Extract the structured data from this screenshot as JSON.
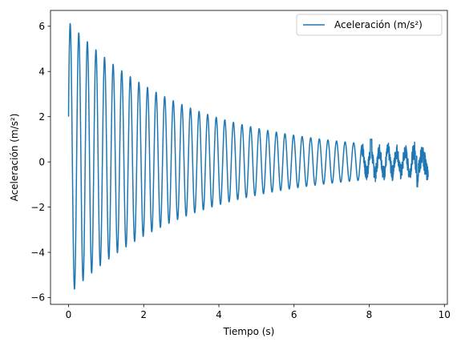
{
  "chart_data": {
    "type": "line",
    "xlabel": "Tiempo (s)",
    "ylabel": "Aceleración (m/s²)",
    "xlim": [
      -0.48,
      10.08
    ],
    "ylim": [
      -6.3,
      6.7
    ],
    "xticks": [
      0,
      2,
      4,
      6,
      8,
      10
    ],
    "yticks": [
      -6,
      -4,
      -2,
      0,
      2,
      4,
      6
    ],
    "xtick_labels": [
      "0",
      "2",
      "4",
      "6",
      "8",
      "10"
    ],
    "ytick_labels": [
      "−6",
      "−4",
      "−2",
      "0",
      "2",
      "4",
      "6"
    ],
    "grid": false,
    "legend": {
      "position": "top-right",
      "entries": [
        "Aceleración (m/s²)"
      ]
    },
    "series": [
      {
        "name": "Aceleración (m/s²)",
        "color": "#1f77b4",
        "description_points": [
          [
            0.0,
            2.0
          ],
          [
            0.05,
            5.4
          ],
          [
            0.08,
            6.2
          ],
          [
            0.15,
            1.5
          ],
          [
            0.2,
            -5.2
          ],
          [
            0.22,
            -5.9
          ],
          [
            0.3,
            0.5
          ],
          [
            0.4,
            6.1
          ],
          [
            0.5,
            -5.3
          ],
          [
            0.6,
            5.3
          ],
          [
            0.7,
            -5.0
          ],
          [
            0.9,
            5.0
          ],
          [
            1.0,
            -4.6
          ],
          [
            1.3,
            4.4
          ],
          [
            1.4,
            -4.1
          ],
          [
            1.8,
            3.7
          ],
          [
            2.0,
            -3.3
          ],
          [
            2.5,
            3.0
          ],
          [
            2.7,
            -2.6
          ],
          [
            3.2,
            2.4
          ],
          [
            3.4,
            -2.1
          ],
          [
            4.0,
            1.9
          ],
          [
            4.2,
            -1.6
          ],
          [
            5.0,
            1.4
          ],
          [
            5.2,
            -1.2
          ],
          [
            6.0,
            1.0
          ],
          [
            6.2,
            -0.8
          ],
          [
            7.0,
            0.7
          ],
          [
            7.2,
            -0.6
          ],
          [
            8.0,
            0.5
          ],
          [
            8.1,
            1.0
          ],
          [
            8.2,
            -0.4
          ],
          [
            9.0,
            0.3
          ],
          [
            9.3,
            -1.1
          ],
          [
            9.4,
            0.6
          ],
          [
            9.55,
            -0.2
          ]
        ],
        "period_s": 0.2286,
        "x_start": 0.0,
        "x_end": 9.57
      }
    ]
  }
}
